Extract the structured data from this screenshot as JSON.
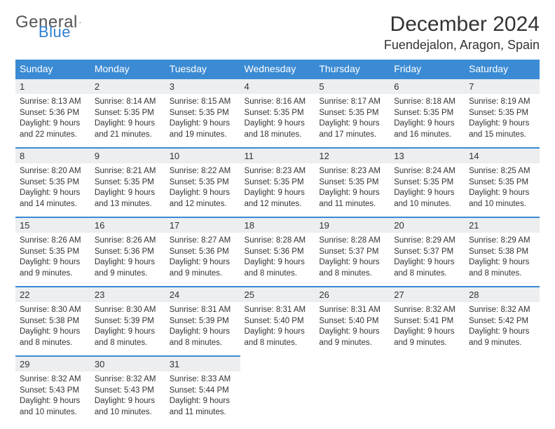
{
  "brand": {
    "part1": "General",
    "part2": "Blue"
  },
  "title": "December 2024",
  "location": "Fuendejalon, Aragon, Spain",
  "colors": {
    "header_bg": "#3b8bd4",
    "header_text": "#ffffff",
    "daynum_bg": "#eceef0",
    "border": "#3b8bd4",
    "text": "#333333",
    "brand_accent": "#2f7fd1"
  },
  "day_headers": [
    "Sunday",
    "Monday",
    "Tuesday",
    "Wednesday",
    "Thursday",
    "Friday",
    "Saturday"
  ],
  "weeks": [
    [
      {
        "n": "1",
        "sr": "Sunrise: 8:13 AM",
        "ss": "Sunset: 5:36 PM",
        "dl": "Daylight: 9 hours and 22 minutes."
      },
      {
        "n": "2",
        "sr": "Sunrise: 8:14 AM",
        "ss": "Sunset: 5:35 PM",
        "dl": "Daylight: 9 hours and 21 minutes."
      },
      {
        "n": "3",
        "sr": "Sunrise: 8:15 AM",
        "ss": "Sunset: 5:35 PM",
        "dl": "Daylight: 9 hours and 19 minutes."
      },
      {
        "n": "4",
        "sr": "Sunrise: 8:16 AM",
        "ss": "Sunset: 5:35 PM",
        "dl": "Daylight: 9 hours and 18 minutes."
      },
      {
        "n": "5",
        "sr": "Sunrise: 8:17 AM",
        "ss": "Sunset: 5:35 PM",
        "dl": "Daylight: 9 hours and 17 minutes."
      },
      {
        "n": "6",
        "sr": "Sunrise: 8:18 AM",
        "ss": "Sunset: 5:35 PM",
        "dl": "Daylight: 9 hours and 16 minutes."
      },
      {
        "n": "7",
        "sr": "Sunrise: 8:19 AM",
        "ss": "Sunset: 5:35 PM",
        "dl": "Daylight: 9 hours and 15 minutes."
      }
    ],
    [
      {
        "n": "8",
        "sr": "Sunrise: 8:20 AM",
        "ss": "Sunset: 5:35 PM",
        "dl": "Daylight: 9 hours and 14 minutes."
      },
      {
        "n": "9",
        "sr": "Sunrise: 8:21 AM",
        "ss": "Sunset: 5:35 PM",
        "dl": "Daylight: 9 hours and 13 minutes."
      },
      {
        "n": "10",
        "sr": "Sunrise: 8:22 AM",
        "ss": "Sunset: 5:35 PM",
        "dl": "Daylight: 9 hours and 12 minutes."
      },
      {
        "n": "11",
        "sr": "Sunrise: 8:23 AM",
        "ss": "Sunset: 5:35 PM",
        "dl": "Daylight: 9 hours and 12 minutes."
      },
      {
        "n": "12",
        "sr": "Sunrise: 8:23 AM",
        "ss": "Sunset: 5:35 PM",
        "dl": "Daylight: 9 hours and 11 minutes."
      },
      {
        "n": "13",
        "sr": "Sunrise: 8:24 AM",
        "ss": "Sunset: 5:35 PM",
        "dl": "Daylight: 9 hours and 10 minutes."
      },
      {
        "n": "14",
        "sr": "Sunrise: 8:25 AM",
        "ss": "Sunset: 5:35 PM",
        "dl": "Daylight: 9 hours and 10 minutes."
      }
    ],
    [
      {
        "n": "15",
        "sr": "Sunrise: 8:26 AM",
        "ss": "Sunset: 5:35 PM",
        "dl": "Daylight: 9 hours and 9 minutes."
      },
      {
        "n": "16",
        "sr": "Sunrise: 8:26 AM",
        "ss": "Sunset: 5:36 PM",
        "dl": "Daylight: 9 hours and 9 minutes."
      },
      {
        "n": "17",
        "sr": "Sunrise: 8:27 AM",
        "ss": "Sunset: 5:36 PM",
        "dl": "Daylight: 9 hours and 9 minutes."
      },
      {
        "n": "18",
        "sr": "Sunrise: 8:28 AM",
        "ss": "Sunset: 5:36 PM",
        "dl": "Daylight: 9 hours and 8 minutes."
      },
      {
        "n": "19",
        "sr": "Sunrise: 8:28 AM",
        "ss": "Sunset: 5:37 PM",
        "dl": "Daylight: 9 hours and 8 minutes."
      },
      {
        "n": "20",
        "sr": "Sunrise: 8:29 AM",
        "ss": "Sunset: 5:37 PM",
        "dl": "Daylight: 9 hours and 8 minutes."
      },
      {
        "n": "21",
        "sr": "Sunrise: 8:29 AM",
        "ss": "Sunset: 5:38 PM",
        "dl": "Daylight: 9 hours and 8 minutes."
      }
    ],
    [
      {
        "n": "22",
        "sr": "Sunrise: 8:30 AM",
        "ss": "Sunset: 5:38 PM",
        "dl": "Daylight: 9 hours and 8 minutes."
      },
      {
        "n": "23",
        "sr": "Sunrise: 8:30 AM",
        "ss": "Sunset: 5:39 PM",
        "dl": "Daylight: 9 hours and 8 minutes."
      },
      {
        "n": "24",
        "sr": "Sunrise: 8:31 AM",
        "ss": "Sunset: 5:39 PM",
        "dl": "Daylight: 9 hours and 8 minutes."
      },
      {
        "n": "25",
        "sr": "Sunrise: 8:31 AM",
        "ss": "Sunset: 5:40 PM",
        "dl": "Daylight: 9 hours and 8 minutes."
      },
      {
        "n": "26",
        "sr": "Sunrise: 8:31 AM",
        "ss": "Sunset: 5:40 PM",
        "dl": "Daylight: 9 hours and 9 minutes."
      },
      {
        "n": "27",
        "sr": "Sunrise: 8:32 AM",
        "ss": "Sunset: 5:41 PM",
        "dl": "Daylight: 9 hours and 9 minutes."
      },
      {
        "n": "28",
        "sr": "Sunrise: 8:32 AM",
        "ss": "Sunset: 5:42 PM",
        "dl": "Daylight: 9 hours and 9 minutes."
      }
    ],
    [
      {
        "n": "29",
        "sr": "Sunrise: 8:32 AM",
        "ss": "Sunset: 5:43 PM",
        "dl": "Daylight: 9 hours and 10 minutes."
      },
      {
        "n": "30",
        "sr": "Sunrise: 8:32 AM",
        "ss": "Sunset: 5:43 PM",
        "dl": "Daylight: 9 hours and 10 minutes."
      },
      {
        "n": "31",
        "sr": "Sunrise: 8:33 AM",
        "ss": "Sunset: 5:44 PM",
        "dl": "Daylight: 9 hours and 11 minutes."
      },
      null,
      null,
      null,
      null
    ]
  ]
}
